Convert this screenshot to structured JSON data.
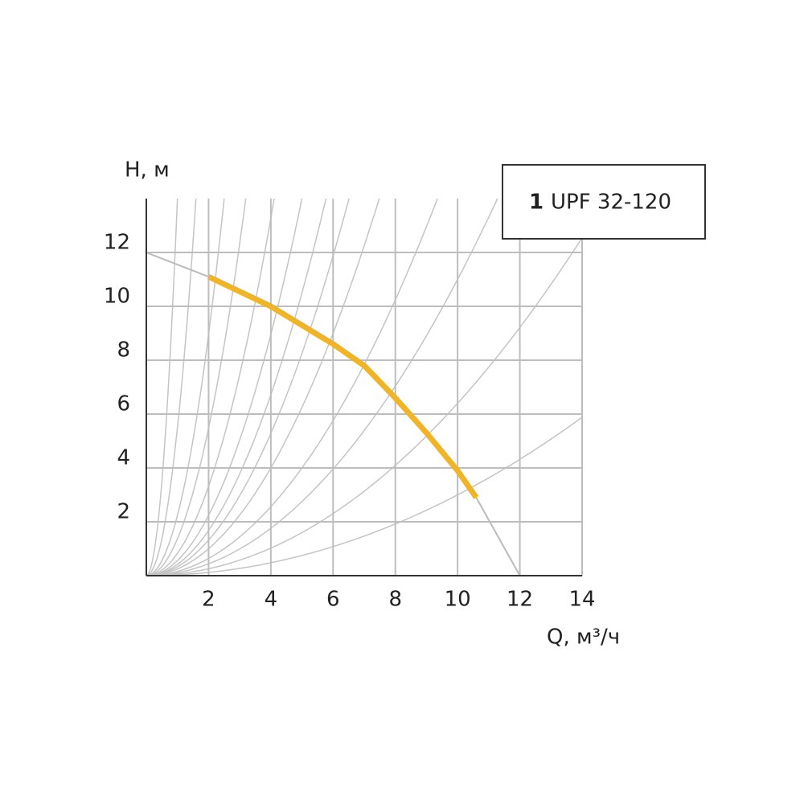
{
  "chart_data": {
    "type": "line",
    "y_label": "H, м",
    "x_label": "Q, м³/ч",
    "xlim": [
      0,
      14
    ],
    "ylim": [
      0,
      14
    ],
    "xticks": [
      2,
      4,
      6,
      8,
      10,
      12,
      14
    ],
    "yticks": [
      2,
      4,
      6,
      8,
      10,
      12
    ],
    "grid": true,
    "series": [
      {
        "name": "UPF 32-120",
        "number": "1",
        "color": "#f0b429",
        "x": [
          2,
          4,
          6,
          7,
          8,
          9,
          10,
          10.6
        ],
        "values": [
          11.1,
          10,
          8.6,
          7.8,
          6.6,
          5.3,
          3.9,
          2.9
        ]
      }
    ],
    "pump_curve_extension": {
      "color": "#bbbbbb",
      "x": [
        0,
        2,
        4,
        6,
        7,
        8,
        9,
        10,
        10.6,
        12
      ],
      "values": [
        12,
        11.1,
        10,
        8.6,
        7.8,
        6.6,
        5.3,
        3.9,
        2.9,
        0
      ]
    },
    "system_curves_k": [
      0.03,
      0.064,
      0.11,
      0.16,
      0.25,
      0.33,
      0.42,
      0.56,
      0.83,
      1.37,
      2.24,
      5.5,
      14
    ],
    "system_curve_color": "#c4c4c4",
    "legend": "top-right"
  }
}
